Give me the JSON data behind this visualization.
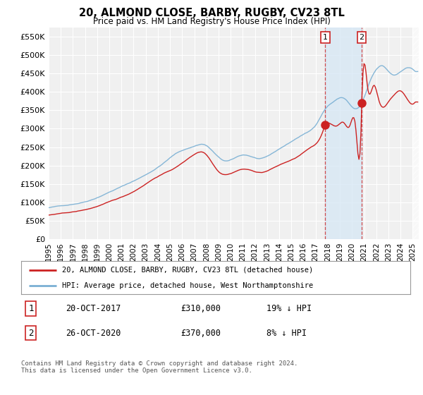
{
  "title": "20, ALMOND CLOSE, BARBY, RUGBY, CV23 8TL",
  "subtitle": "Price paid vs. HM Land Registry's House Price Index (HPI)",
  "ylim": [
    0,
    575000
  ],
  "yticks": [
    0,
    50000,
    100000,
    150000,
    200000,
    250000,
    300000,
    350000,
    400000,
    450000,
    500000,
    550000
  ],
  "ytick_labels": [
    "£0",
    "£50K",
    "£100K",
    "£150K",
    "£200K",
    "£250K",
    "£300K",
    "£350K",
    "£400K",
    "£450K",
    "£500K",
    "£550K"
  ],
  "hpi_color": "#7ab0d4",
  "price_color": "#cc2222",
  "sale1_x": 2017.8,
  "sale1_y": 310000,
  "sale2_x": 2020.8,
  "sale2_y": 370000,
  "sale1_date": "20-OCT-2017",
  "sale1_price": "£310,000",
  "sale1_pct": "19% ↓ HPI",
  "sale2_date": "26-OCT-2020",
  "sale2_price": "£370,000",
  "sale2_pct": "8% ↓ HPI",
  "legend1": "20, ALMOND CLOSE, BARBY, RUGBY, CV23 8TL (detached house)",
  "legend2": "HPI: Average price, detached house, West Northamptonshire",
  "footer": "Contains HM Land Registry data © Crown copyright and database right 2024.\nThis data is licensed under the Open Government Licence v3.0.",
  "bg_color": "#ffffff",
  "plot_bg_color": "#f0f0f0",
  "grid_color": "#ffffff",
  "shade_color": "#d8e8f5",
  "xlim_start": 1995.0,
  "xlim_end": 2025.5
}
